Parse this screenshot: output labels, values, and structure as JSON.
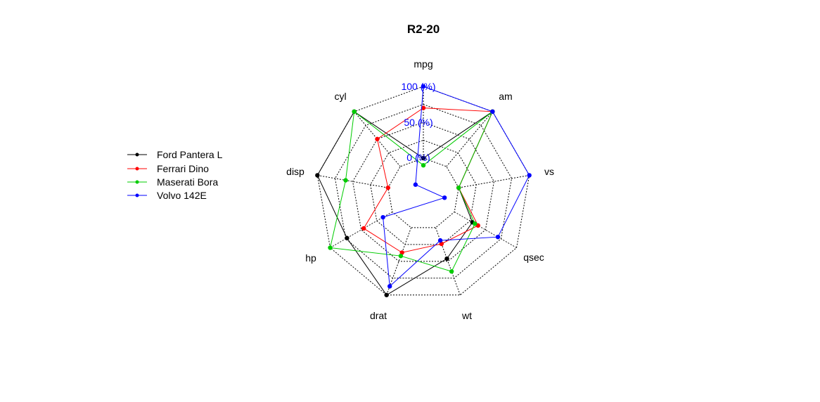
{
  "chart_data": {
    "type": "radar",
    "title": "R2-20",
    "axes": [
      "mpg",
      "am",
      "vs",
      "qsec",
      "wt",
      "drat",
      "hp",
      "disp",
      "cyl"
    ],
    "axis_tick_labels": [
      "0 (%)",
      "50 (%)",
      "100 (%)"
    ],
    "axis_tick_values": [
      0,
      50,
      100
    ],
    "range": [
      0,
      100
    ],
    "legend_position": "left",
    "colors": {
      "grid": "#000000",
      "axis_ticks": "#0000ff"
    },
    "series": [
      {
        "name": "Ford Pantera L",
        "color": "#000000",
        "values": [
          0,
          100,
          0,
          29,
          46,
          100,
          73,
          100,
          100
        ]
      },
      {
        "name": "Ferrari Dino",
        "color": "#ff0000",
        "values": [
          70,
          100,
          0,
          38,
          24,
          37,
          46,
          0,
          50
        ]
      },
      {
        "name": "Maserati Bora",
        "color": "#00cc00",
        "values": [
          -10,
          100,
          0,
          33,
          65,
          42,
          100,
          60,
          100
        ]
      },
      {
        "name": "Volvo 142E",
        "color": "#0000ff",
        "values": [
          100,
          100,
          100,
          70,
          19,
          87,
          15,
          -80,
          -33
        ]
      }
    ]
  }
}
